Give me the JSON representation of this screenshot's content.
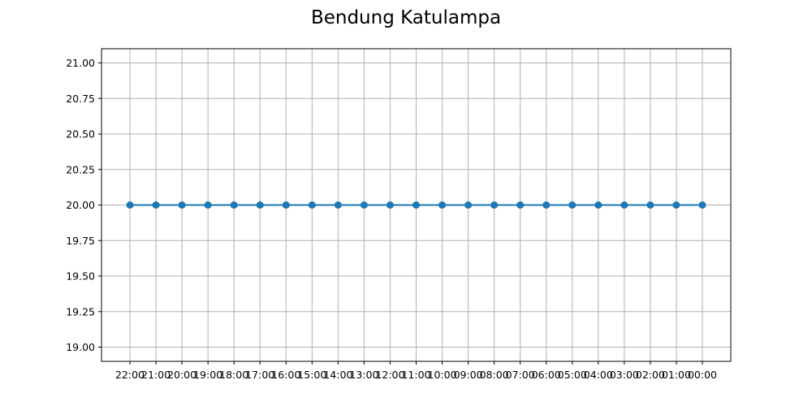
{
  "chart_data": {
    "type": "line",
    "title": "Bendung Katulampa",
    "xlabel": "",
    "ylabel": "",
    "categories": [
      "22:00",
      "21:00",
      "20:00",
      "19:00",
      "18:00",
      "17:00",
      "16:00",
      "15:00",
      "14:00",
      "13:00",
      "12:00",
      "11:00",
      "10:00",
      "09:00",
      "08:00",
      "07:00",
      "06:00",
      "05:00",
      "04:00",
      "03:00",
      "02:00",
      "01:00",
      "00:00"
    ],
    "series": [
      {
        "values": [
          20,
          20,
          20,
          20,
          20,
          20,
          20,
          20,
          20,
          20,
          20,
          20,
          20,
          20,
          20,
          20,
          20,
          20,
          20,
          20,
          20,
          20,
          20
        ],
        "color": "#1f77b4",
        "marker": "circle"
      }
    ],
    "ylim": [
      18.9,
      21.1
    ],
    "yticks": [
      "19.00",
      "19.25",
      "19.50",
      "19.75",
      "20.00",
      "20.25",
      "20.50",
      "20.75",
      "21.00"
    ],
    "grid": true,
    "legend": "none"
  }
}
